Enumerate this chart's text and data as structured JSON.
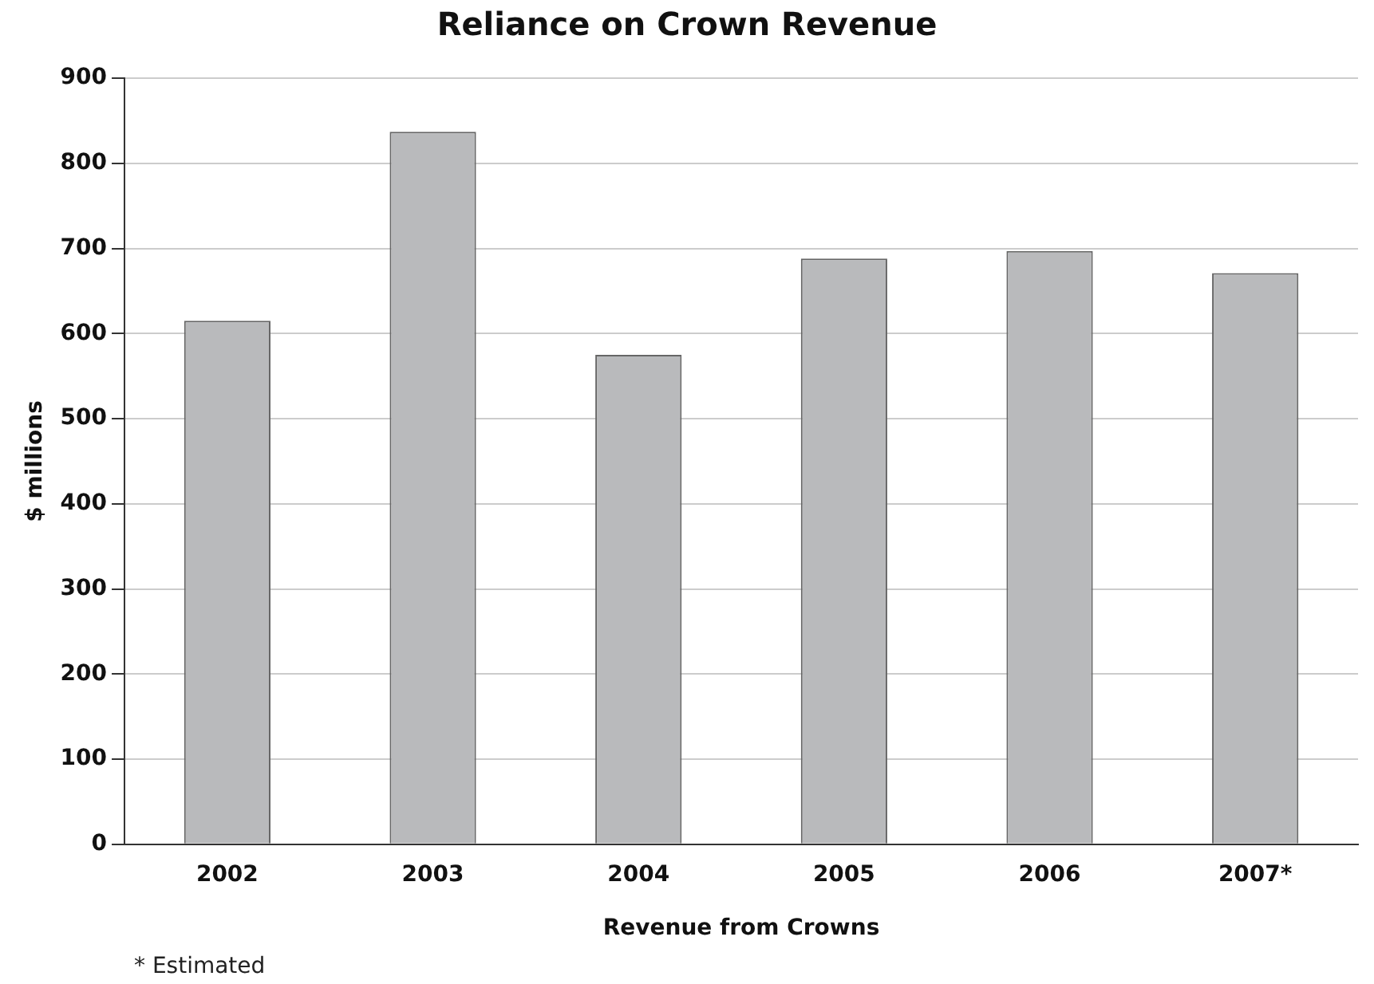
{
  "chart_data": {
    "type": "bar",
    "title": "Reliance on Crown Revenue",
    "xlabel": "Revenue from Crowns",
    "ylabel": "$ millions",
    "categories": [
      "2002",
      "2003",
      "2004",
      "2005",
      "2006",
      "2007*"
    ],
    "values": [
      615,
      837,
      575,
      688,
      697,
      671
    ],
    "color": "#b9babc",
    "ylim": [
      0,
      900
    ],
    "yticks": [
      0,
      100,
      200,
      300,
      400,
      500,
      600,
      700,
      800,
      900
    ],
    "grid": "y",
    "legend": false,
    "annotations": [
      "* Estimated"
    ]
  }
}
